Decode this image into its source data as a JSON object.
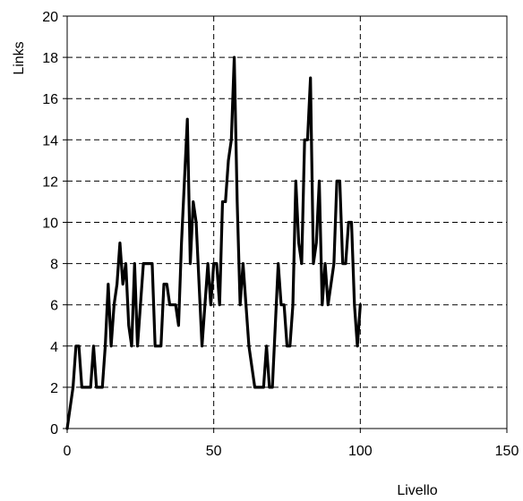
{
  "chart_data": {
    "type": "line",
    "title": "",
    "xlabel": "Livello",
    "ylabel": "Links",
    "xlim": [
      0,
      150
    ],
    "ylim": [
      0,
      20
    ],
    "x_ticks": [
      0,
      50,
      100,
      150
    ],
    "y_ticks": [
      0,
      2,
      4,
      6,
      8,
      10,
      12,
      14,
      16,
      18,
      20
    ],
    "x_tick_labels": [
      "0",
      "50",
      "100",
      "150"
    ],
    "y_tick_labels": [
      "0",
      "2",
      "4",
      "6",
      "8",
      "10",
      "12",
      "14",
      "16",
      "18",
      "20"
    ],
    "grid": {
      "horizontal": true,
      "vertical": true,
      "style": "dashed"
    },
    "line_color": "#000000",
    "series": [
      {
        "x": [
          0,
          1,
          2,
          3,
          4,
          5,
          6,
          7,
          8,
          9,
          10,
          11,
          12,
          13,
          14,
          15,
          16,
          17,
          18,
          19,
          20,
          21,
          22,
          23,
          24,
          25,
          26,
          27,
          28,
          29,
          30,
          31,
          32,
          33,
          34,
          35,
          36,
          37,
          38,
          39,
          40,
          41,
          42,
          43,
          44,
          45,
          46,
          47,
          48,
          49,
          50,
          51,
          52,
          53,
          54,
          55,
          56,
          57,
          58,
          59,
          60,
          61,
          62,
          63,
          64,
          65,
          66,
          67,
          68,
          69,
          70,
          71,
          72,
          73,
          74,
          75,
          76,
          77,
          78,
          79,
          80,
          81,
          82,
          83,
          84,
          85,
          86,
          87,
          88,
          89,
          90,
          91,
          92,
          93,
          94,
          95,
          96,
          97,
          98,
          99,
          100
        ],
        "y": [
          0,
          1,
          2,
          4,
          4,
          2,
          2,
          2,
          2,
          4,
          2,
          2,
          2,
          4,
          7,
          4,
          6,
          7,
          9,
          7,
          8,
          5,
          4,
          8,
          4,
          6,
          8,
          8,
          8,
          8,
          4,
          4,
          4,
          7,
          7,
          6,
          6,
          6,
          5,
          9,
          12,
          15,
          8,
          11,
          10,
          7,
          4,
          6,
          8,
          6,
          8,
          8,
          6,
          11,
          11,
          13,
          14,
          18,
          11,
          6,
          8,
          6,
          4,
          3,
          2,
          2,
          2,
          2,
          4,
          2,
          2,
          5,
          8,
          6,
          6,
          4,
          4,
          6,
          12,
          9,
          8,
          14,
          14,
          17,
          8,
          9,
          12,
          6,
          8,
          6,
          7,
          8,
          12,
          12,
          8,
          8,
          10,
          10,
          6,
          4,
          6
        ]
      }
    ]
  }
}
